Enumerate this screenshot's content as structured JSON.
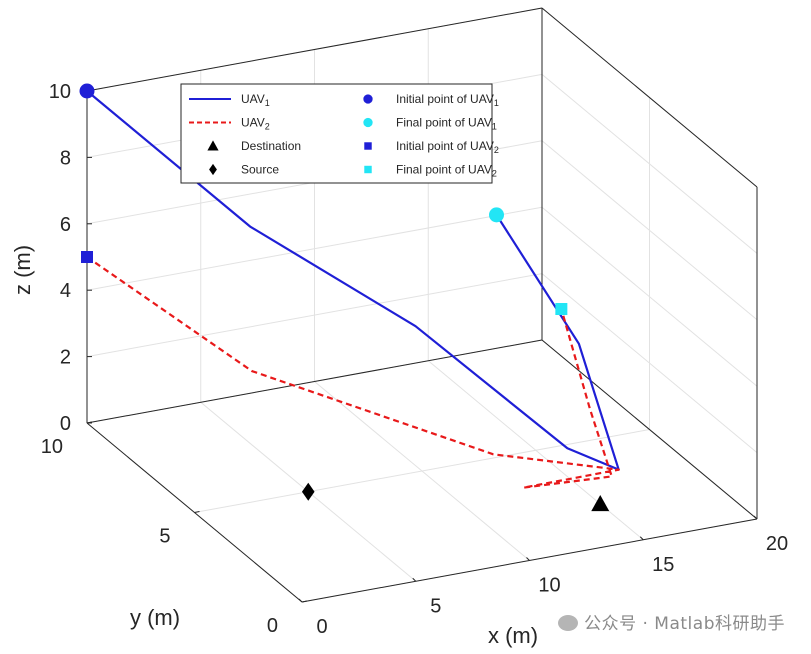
{
  "chart_data": {
    "type": "line3d",
    "xlabel": "x (m)",
    "ylabel": "y (m)",
    "zlabel": "z (m)",
    "xlim": [
      0,
      20
    ],
    "ylim": [
      0,
      10
    ],
    "zlim": [
      0,
      10
    ],
    "xticks": [
      "0",
      "5",
      "10",
      "15",
      "20"
    ],
    "yticks": [
      "0",
      "5",
      "10"
    ],
    "zticks": [
      "0",
      "2",
      "4",
      "6",
      "8",
      "10"
    ],
    "grid": true,
    "legend_position": "top-center",
    "legend": [
      {
        "text": "UAV",
        "sub": "1",
        "marker": "line-solid",
        "color": "#1f1fd6"
      },
      {
        "text": "UAV",
        "sub": "2",
        "marker": "line-dashed",
        "color": "#e8191a"
      },
      {
        "text": "Destination",
        "sub": "",
        "marker": "triangle",
        "color": "#000000"
      },
      {
        "text": "Source",
        "sub": "",
        "marker": "diamond",
        "color": "#000000"
      },
      {
        "text": "Initial point of UAV",
        "sub": "1",
        "marker": "circle",
        "color": "#1f1fd6"
      },
      {
        "text": "Final point of UAV",
        "sub": "1",
        "marker": "circle",
        "color": "#22e5f5"
      },
      {
        "text": "Initial point of UAV",
        "sub": "2",
        "marker": "square",
        "color": "#1f1fd6"
      },
      {
        "text": "Final point of UAV",
        "sub": "2",
        "marker": "square",
        "color": "#22e5f5"
      }
    ],
    "series": [
      {
        "name": "UAV1",
        "color": "#1f1fd6",
        "style": "solid",
        "points": [
          [
            0,
            10,
            10
          ],
          [
            4.9,
            7.6,
            6.6
          ],
          [
            10,
            5.3,
            4.2
          ],
          [
            14.5,
            3,
            1.2
          ],
          [
            16,
            2.2,
            0.8
          ],
          [
            13.4,
            1.3,
            5.4
          ],
          [
            9.4,
            0.9,
            10
          ]
        ]
      },
      {
        "name": "UAV2",
        "color": "#e8191a",
        "style": "dashed",
        "points": [
          [
            0,
            10,
            5
          ],
          [
            4.6,
            7.2,
            2.5
          ],
          [
            12,
            3.8,
            0.9
          ],
          [
            16,
            2.2,
            0.8
          ],
          [
            12,
            2.4,
            0.65
          ],
          [
            15.6,
            2.1,
            0.7
          ],
          [
            13.7,
            1.1,
            3.5
          ],
          [
            11.4,
            0,
            7.4
          ]
        ]
      }
    ],
    "markers": [
      {
        "name": "Initial point of UAV1",
        "shape": "circle",
        "color": "#1f1fd6",
        "point": [
          0,
          10,
          10
        ]
      },
      {
        "name": "Final point of UAV1",
        "shape": "circle",
        "color": "#22e5f5",
        "point": [
          9.4,
          0.9,
          10
        ]
      },
      {
        "name": "Initial point of UAV2",
        "shape": "square",
        "color": "#1f1fd6",
        "point": [
          0,
          10,
          5
        ]
      },
      {
        "name": "Final point of UAV2",
        "shape": "square",
        "color": "#22e5f5",
        "point": [
          11.4,
          0,
          7.4
        ]
      },
      {
        "name": "Destination",
        "shape": "triangle",
        "color": "#000000",
        "point": [
          15,
          2,
          0
        ]
      },
      {
        "name": "Source",
        "shape": "diamond",
        "color": "#000000",
        "point": [
          5,
          5,
          0
        ]
      }
    ]
  },
  "watermark": {
    "text": "公众号 · Matlab科研助手",
    "icon": "wechat-icon"
  }
}
